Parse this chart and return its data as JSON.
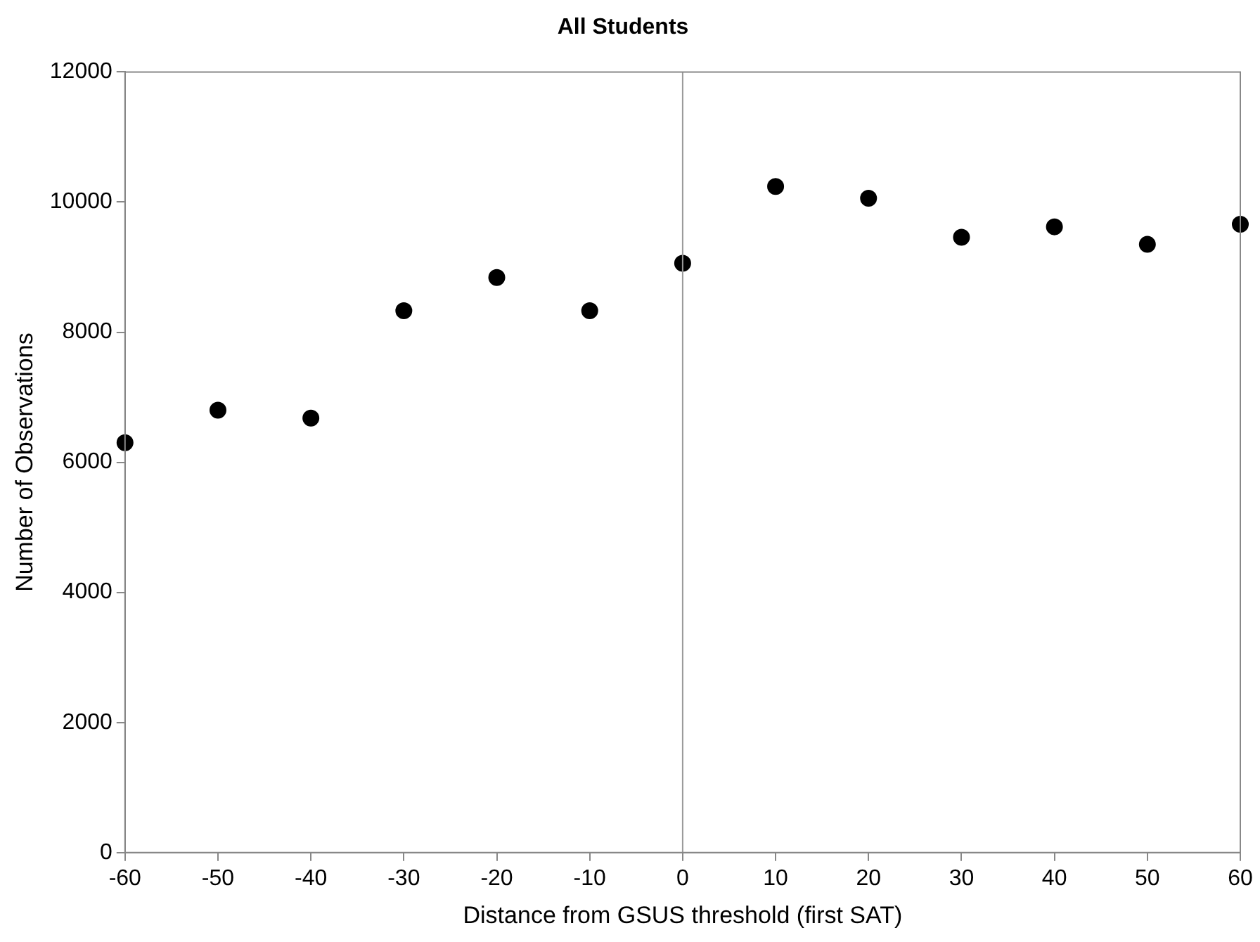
{
  "chart_data": {
    "type": "scatter",
    "title": "All Students",
    "xlabel": "Distance from GSUS threshold (first SAT)",
    "ylabel": "Number of Observations",
    "x": [
      -60,
      -50,
      -40,
      -30,
      -20,
      -10,
      0,
      10,
      20,
      30,
      40,
      50,
      60
    ],
    "series": [
      {
        "color": "#000000",
        "values": [
          6300,
          6800,
          6680,
          8330,
          8840,
          8330,
          9060,
          10240,
          10060,
          9460,
          9620,
          9350,
          9660
        ]
      }
    ],
    "xlim": [
      -60,
      60
    ],
    "xticks": [
      -60,
      -50,
      -40,
      -30,
      -20,
      -10,
      0,
      10,
      20,
      30,
      40,
      50,
      60
    ],
    "ylim": [
      0,
      12000
    ],
    "yticks": [
      0,
      2000,
      4000,
      6000,
      8000,
      10000,
      12000
    ],
    "ref_lines": [
      {
        "axis": "x",
        "value": 0,
        "color": "#999999"
      }
    ],
    "marker": "circle",
    "grid": false,
    "legend": false
  }
}
